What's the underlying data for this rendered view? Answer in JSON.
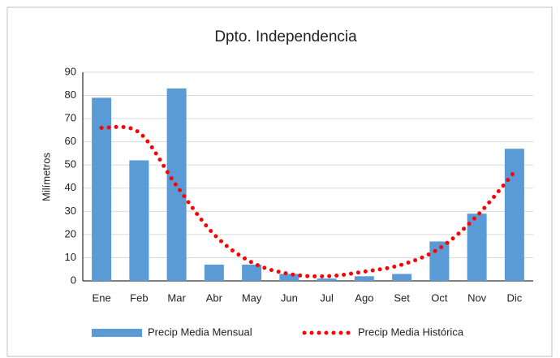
{
  "chart_data": {
    "type": "bar",
    "title": "Dpto. Independencia",
    "y_label": "Milímetros",
    "categories": [
      "Ene",
      "Feb",
      "Mar",
      "Abr",
      "May",
      "Jun",
      "Jul",
      "Ago",
      "Set",
      "Oct",
      "Nov",
      "Dic"
    ],
    "series": [
      {
        "name": "Precip Media Mensual",
        "type": "bar",
        "color": "#5b9bd5",
        "values": [
          79,
          52,
          83,
          7,
          7,
          3,
          1,
          2,
          3,
          17,
          29,
          57
        ]
      },
      {
        "name": "Precip Media Histórica",
        "type": "line",
        "color": "#ff0000",
        "values": [
          66,
          64,
          41,
          20,
          8,
          3,
          2,
          4,
          7,
          14,
          28,
          47
        ]
      }
    ],
    "ylim": [
      0,
      90
    ],
    "yticks": [
      0,
      10,
      20,
      30,
      40,
      50,
      60,
      70,
      80,
      90
    ],
    "grid": true,
    "legend": "bottom"
  }
}
